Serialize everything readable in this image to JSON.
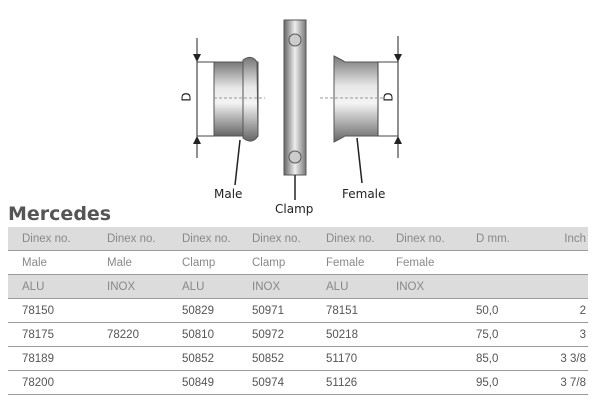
{
  "diagram": {
    "labels": {
      "male": "Male",
      "clamp": "Clamp",
      "female": "Female",
      "dimension": "D"
    }
  },
  "brand": "Mercedes",
  "table": {
    "header_rows": [
      [
        "Dinex no.",
        "Dinex no.",
        "Dinex no.",
        "Dinex no.",
        "Dinex no.",
        "Dinex no.",
        "D mm.",
        "Inch"
      ],
      [
        "Male",
        "Male",
        "Clamp",
        "Clamp",
        "Female",
        "Female",
        "",
        ""
      ],
      [
        "ALU",
        "INOX",
        "ALU",
        "INOX",
        "ALU",
        "INOX",
        "",
        ""
      ]
    ],
    "rows": [
      [
        "78150",
        "",
        "50829",
        "50971",
        "78151",
        "",
        "50,0",
        "2"
      ],
      [
        "78175",
        "78220",
        "50810",
        "50972",
        "50218",
        "",
        "75,0",
        "3"
      ],
      [
        "78189",
        "",
        "50852",
        "50852",
        "51170",
        "",
        "85,0",
        "3 3/8"
      ],
      [
        "78200",
        "",
        "50849",
        "50974",
        "51126",
        "",
        "95,0",
        "3 7/8"
      ]
    ]
  }
}
